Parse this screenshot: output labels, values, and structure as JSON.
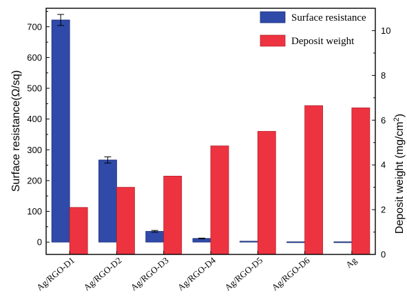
{
  "chart_data": {
    "type": "bar",
    "title": "",
    "xlabel": "",
    "categories": [
      "Ag/RGO-D1",
      "Ag/RGO-D2",
      "Ag/RGO-D3",
      "Ag/RGO-D4",
      "Ag/RGO-D5",
      "Ag/RGO-D6",
      "Ag"
    ],
    "left_axis": {
      "label": "Surface resistance(Ω/sq)",
      "ylim": [
        -40,
        760
      ],
      "ticks": [
        0,
        100,
        200,
        300,
        400,
        500,
        600,
        700
      ]
    },
    "right_axis": {
      "label": "Deposit weight (mg/cm",
      "label_sup": "2",
      "label_close": ")",
      "ylim": [
        0,
        11
      ],
      "ticks": [
        0,
        2,
        4,
        6,
        8,
        10
      ]
    },
    "series": [
      {
        "name": "Surface resistance",
        "axis": "left",
        "color": "#2f4aa8",
        "values": [
          722,
          267,
          35,
          12,
          3,
          1,
          1
        ],
        "errors": [
          18,
          10,
          3,
          1,
          0,
          0,
          0
        ]
      },
      {
        "name": "Deposit weight",
        "axis": "right",
        "color": "#ee3340",
        "values": [
          2.1,
          3.0,
          3.5,
          4.85,
          5.5,
          6.65,
          6.55
        ]
      }
    ],
    "grid": false,
    "legend": "top-right"
  }
}
